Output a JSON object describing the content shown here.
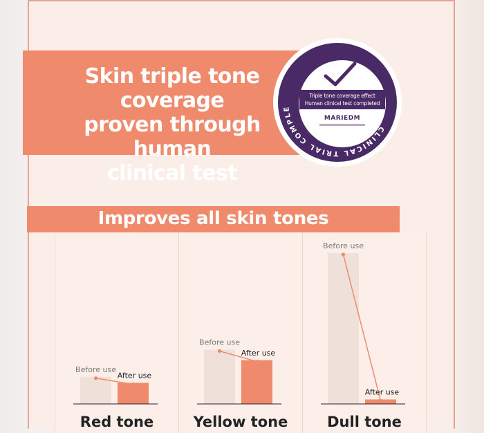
{
  "banner": {
    "title_lines": [
      "Skin triple tone coverage",
      "proven through human",
      "clinical test"
    ]
  },
  "seal": {
    "ring_text": "CLINICAL TRIAL COMPLETED",
    "line1": "Triple tone coverage effect",
    "line2": "Human clinical test completed",
    "brand": "MARIEDM",
    "check_icon": "checkmark-icon"
  },
  "chart_header": "Improves all skin tones",
  "colors": {
    "accent": "#f08a6d",
    "seal": "#4a2a66",
    "before_bar": "#efe0da",
    "after_bar": "#f08a6d"
  },
  "chart_data": {
    "type": "bar",
    "title": "Improves all skin tones",
    "ylim": [
      0,
      100
    ],
    "series_labels": {
      "before": "Before use",
      "after": "After use"
    },
    "panels": [
      {
        "name": "Red tone",
        "before": 18,
        "after": 14
      },
      {
        "name": "Yellow tone",
        "before": 36,
        "after": 29
      },
      {
        "name": "Dull tone",
        "before": 100,
        "after": 3
      }
    ]
  }
}
